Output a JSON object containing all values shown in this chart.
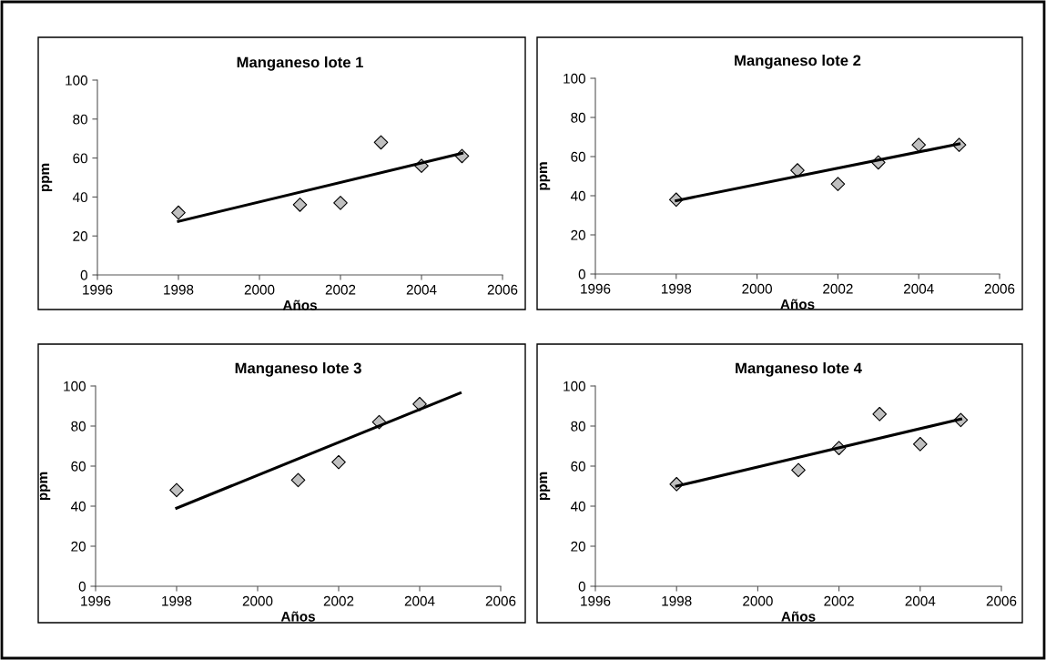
{
  "chart_data": [
    {
      "type": "scatter",
      "title": "Manganeso lote 1",
      "xlabel": "Años",
      "ylabel": "ppm",
      "xlim": [
        1996,
        2006
      ],
      "xticks": [
        1996,
        1998,
        2000,
        2002,
        2004,
        2006
      ],
      "ylim": [
        0,
        100
      ],
      "yticks": [
        0,
        20,
        40,
        60,
        80,
        100
      ],
      "grid": false,
      "marker": "diamond",
      "series": [
        {
          "color": "#c0c0c0",
          "x": [
            1998,
            2001,
            2002,
            2003,
            2004,
            2005
          ],
          "values": [
            32,
            36,
            37,
            68,
            56,
            61
          ]
        },
        {
          "type": "line",
          "color": "#000000",
          "marker": "none",
          "line_style": "solid",
          "x": [
            1998,
            2005
          ],
          "values": [
            27.5,
            62.5
          ]
        }
      ]
    },
    {
      "type": "scatter",
      "title": "Manganeso lote 2",
      "xlabel": "Años",
      "ylabel": "ppm",
      "xlim": [
        1996,
        2006
      ],
      "xticks": [
        1996,
        1998,
        2000,
        2002,
        2004,
        2006
      ],
      "ylim": [
        0,
        100
      ],
      "yticks": [
        0,
        20,
        40,
        60,
        80,
        100
      ],
      "grid": false,
      "marker": "diamond",
      "series": [
        {
          "color": "#c0c0c0",
          "x": [
            1998,
            2001,
            2002,
            2003,
            2004,
            2005
          ],
          "values": [
            38,
            53,
            46,
            57,
            66,
            66
          ]
        },
        {
          "type": "line",
          "color": "#000000",
          "marker": "none",
          "line_style": "solid",
          "x": [
            1998,
            2005
          ],
          "values": [
            37.5,
            66.5
          ]
        }
      ]
    },
    {
      "type": "scatter",
      "title": "Manganeso lote 3",
      "xlabel": "Años",
      "ylabel": "ppm",
      "xlim": [
        1996,
        2006
      ],
      "xticks": [
        1996,
        1998,
        2000,
        2002,
        2004,
        2006
      ],
      "ylim": [
        0,
        100
      ],
      "yticks": [
        0,
        20,
        40,
        60,
        80,
        100
      ],
      "grid": false,
      "marker": "diamond",
      "series": [
        {
          "color": "#c0c0c0",
          "x": [
            1998,
            2001,
            2002,
            2003,
            2004
          ],
          "values": [
            48,
            53,
            62,
            82,
            91
          ]
        },
        {
          "type": "line",
          "color": "#000000",
          "marker": "none",
          "line_style": "solid",
          "x": [
            1998,
            2005
          ],
          "values": [
            39,
            96.5
          ]
        }
      ]
    },
    {
      "type": "scatter",
      "title": "Manganeso lote 4",
      "xlabel": "Años",
      "ylabel": "ppm",
      "xlim": [
        1996,
        2006
      ],
      "xticks": [
        1996,
        1998,
        2000,
        2002,
        2004,
        2006
      ],
      "ylim": [
        0,
        100
      ],
      "yticks": [
        0,
        20,
        40,
        60,
        80,
        100
      ],
      "grid": false,
      "marker": "diamond",
      "series": [
        {
          "color": "#c0c0c0",
          "x": [
            1998,
            2001,
            2002,
            2003,
            2004,
            2005
          ],
          "values": [
            51,
            58,
            69,
            86,
            71,
            83
          ]
        },
        {
          "type": "line",
          "color": "#000000",
          "marker": "none",
          "line_style": "solid",
          "x": [
            1998,
            2005
          ],
          "values": [
            50,
            83.5
          ]
        }
      ]
    }
  ]
}
